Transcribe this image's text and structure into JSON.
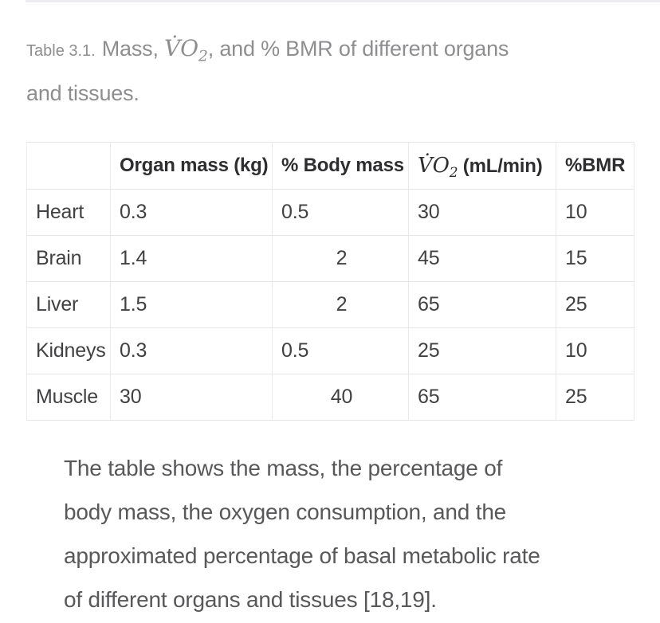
{
  "caption": {
    "label": "Table 3.1.",
    "line1_pre": "Mass, ",
    "vo2_main": "V̇O",
    "vo2_sub": "2",
    "line1_post": ", and % BMR of different organs",
    "line2": "and tissues."
  },
  "table": {
    "headers": {
      "organ": "",
      "organ_mass": "Organ mass (kg)",
      "body_mass": "% Body mass",
      "vo2_main": "V̇O",
      "vo2_sub": "2",
      "vo2_unit": " (mL/min)",
      "bmr": "%BMR"
    },
    "rows": [
      {
        "organ": "Heart",
        "mass": "0.3",
        "body_mass": "0.5",
        "body_mass_align": "left",
        "vo2": "30",
        "bmr": "10"
      },
      {
        "organ": "Brain",
        "mass": "1.4",
        "body_mass": "2",
        "body_mass_align": "center",
        "vo2": "45",
        "bmr": "15"
      },
      {
        "organ": "Liver",
        "mass": "1.5",
        "body_mass": "2",
        "body_mass_align": "center",
        "vo2": "65",
        "bmr": "25"
      },
      {
        "organ": "Kidneys",
        "mass": "0.3",
        "body_mass": "0.5",
        "body_mass_align": "left",
        "vo2": "25",
        "bmr": "10"
      },
      {
        "organ": "Muscle",
        "mass": "30",
        "body_mass": "40",
        "body_mass_align": "center",
        "vo2": "65",
        "bmr": "25"
      }
    ]
  },
  "paragraph": {
    "lines": [
      "The table shows the mass, the percentage of",
      "body mass, the oxygen consumption, and the",
      "approximated percentage of basal metabolic rate",
      "of different organs and tissues [18,19]."
    ]
  },
  "colors": {
    "caption_text": "#8e8e90",
    "table_header_text": "#2e2e30",
    "table_cell_text": "#414143",
    "paragraph_text": "#58585a",
    "border": "#e6e6e8",
    "top_divider": "#ededef",
    "background": "#ffffff"
  }
}
